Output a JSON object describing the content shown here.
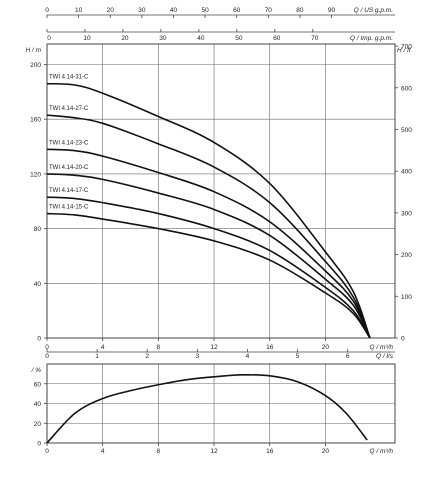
{
  "colors": {
    "curve": "#111111",
    "grid": "#6a6a6a",
    "axis": "#444444",
    "text": "#222222"
  },
  "chart_data": [
    {
      "type": "line",
      "title": "",
      "grid": true,
      "xlabel": "Q / m³/h",
      "ylabel": "H / m",
      "y2label": "H / ft",
      "xlim": [
        0,
        25
      ],
      "ylim": [
        0,
        215
      ],
      "y2lim": [
        0,
        705
      ],
      "x_ticks": [
        "0",
        "4",
        "8",
        "12",
        "16",
        "20"
      ],
      "y_ticks": [
        "0",
        "40",
        "80",
        "120",
        "160",
        "200"
      ],
      "y2_ticks": [
        "0",
        "100",
        "200",
        "300",
        "400",
        "500",
        "600",
        "700"
      ],
      "top_axis_us": {
        "label": "Q / US g.p.m.",
        "ticks": [
          "0",
          "10",
          "20",
          "30",
          "40",
          "50",
          "60",
          "70",
          "80",
          "90"
        ],
        "label_value": 95
      },
      "top_axis_imp": {
        "label": "Q / Imp. g.p.m.",
        "ticks": [
          "0",
          "10",
          "20",
          "30",
          "40",
          "50",
          "60",
          "70"
        ],
        "label_value": 77
      },
      "series": [
        {
          "name": "TWI 4.14-31-C",
          "x": [
            0,
            2,
            4,
            8,
            12,
            16,
            20,
            22,
            23.2
          ],
          "y": [
            186,
            185,
            179,
            162,
            143,
            113,
            63,
            34,
            0
          ]
        },
        {
          "name": "TWI 4.14-27-C",
          "x": [
            0,
            2,
            4,
            8,
            12,
            16,
            20,
            22,
            23.2
          ],
          "y": [
            163,
            161,
            157,
            142,
            125,
            99,
            56,
            30,
            0
          ]
        },
        {
          "name": "TWI 4.14-23-C",
          "x": [
            0,
            2,
            4,
            8,
            12,
            16,
            20,
            22,
            23.2
          ],
          "y": [
            138,
            137,
            133,
            121,
            107,
            85,
            49,
            27,
            0
          ]
        },
        {
          "name": "TWI 4.14-20-C",
          "x": [
            0,
            2,
            4,
            8,
            12,
            16,
            20,
            22,
            23.2
          ],
          "y": [
            120,
            119,
            116,
            106,
            94,
            75,
            43,
            24,
            0
          ]
        },
        {
          "name": "TWI 4.14-17-C",
          "x": [
            0,
            2,
            4,
            8,
            12,
            16,
            20,
            22,
            23.2
          ],
          "y": [
            103,
            102,
            99,
            91,
            80,
            64,
            37,
            20,
            0
          ]
        },
        {
          "name": "TWI 4.14-15-C",
          "x": [
            0,
            2,
            4,
            8,
            12,
            16,
            20,
            22,
            23.2
          ],
          "y": [
            91,
            90,
            87,
            80,
            71,
            57,
            33,
            18,
            0
          ]
        }
      ]
    },
    {
      "type": "line",
      "title": "",
      "grid": true,
      "xlabel": "Q / m³/h",
      "ylabel": "/ %",
      "xlim": [
        0,
        25
      ],
      "ylim": [
        0,
        80
      ],
      "x_ticks": [
        "0",
        "4",
        "8",
        "12",
        "16",
        "20"
      ],
      "y_ticks": [
        "0",
        "20",
        "40",
        "60"
      ],
      "top_axis_ls": {
        "label": "Q / l/s",
        "ticks": [
          "0",
          "1",
          "2",
          "3",
          "4",
          "5",
          "6"
        ],
        "label_value": 6.5
      },
      "series": [
        {
          "name": "",
          "x": [
            0,
            2,
            4,
            6,
            8,
            10,
            12,
            14,
            16,
            18,
            20,
            21.5,
            23
          ],
          "y": [
            0,
            30,
            45,
            53,
            59,
            64,
            67,
            69,
            68,
            62,
            48,
            30,
            3
          ]
        }
      ]
    }
  ]
}
